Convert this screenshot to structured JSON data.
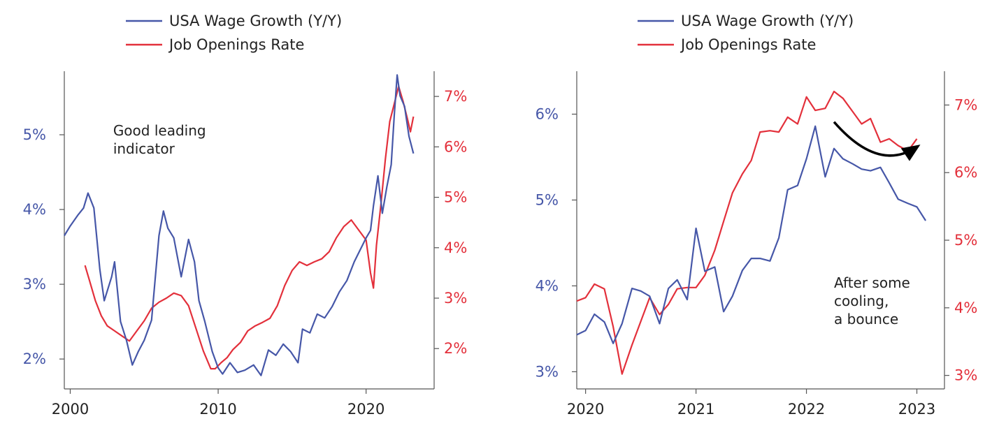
{
  "colors": {
    "wage": "#4657a8",
    "job": "#e3303b",
    "axis": "#555555",
    "arrow": "#000000"
  },
  "chart_data": [
    {
      "type": "line",
      "title": "",
      "legend_placement": "top",
      "grid": false,
      "xlim": [
        1999.6,
        2024.6
      ],
      "x_ticks": [
        2000,
        2010,
        2020
      ],
      "x_tick_labels": [
        "2000",
        "2010",
        "2020"
      ],
      "y_left": {
        "ylim": [
          1.6,
          5.85
        ],
        "ticks": [
          2,
          3,
          4,
          5
        ],
        "tick_labels": [
          "2%",
          "3%",
          "4%",
          "5%"
        ]
      },
      "y_right": {
        "ylim": [
          1.2,
          7.5
        ],
        "ticks": [
          2,
          3,
          4,
          5,
          6,
          7
        ],
        "tick_labels": [
          "2%",
          "3%",
          "4%",
          "5%",
          "6%",
          "7%"
        ]
      },
      "annotation": {
        "lines": [
          "Good leading",
          "indicator"
        ],
        "x": 2002.9,
        "y_left": 4.99
      },
      "series": [
        {
          "name": "USA Wage Growth (Y/Y)",
          "axis": "left",
          "x": [
            1999.6,
            2000.0,
            2000.5,
            2000.9,
            2001.2,
            2001.6,
            2002.0,
            2002.3,
            2002.8,
            2003.0,
            2003.4,
            2003.8,
            2004.2,
            2004.6,
            2005.0,
            2005.5,
            2006.0,
            2006.3,
            2006.6,
            2007.0,
            2007.5,
            2008.0,
            2008.4,
            2008.7,
            2009.1,
            2009.6,
            2010.0,
            2010.3,
            2010.8,
            2011.3,
            2011.8,
            2012.4,
            2012.9,
            2013.4,
            2013.9,
            2014.4,
            2014.9,
            2015.4,
            2015.7,
            2016.2,
            2016.7,
            2017.2,
            2017.7,
            2018.2,
            2018.7,
            2019.2,
            2019.7,
            2020.0,
            2020.3,
            2020.5,
            2020.8,
            2021.1,
            2021.4,
            2021.7,
            2021.9,
            2022.1,
            2022.3,
            2022.6,
            2022.9,
            2023.2
          ],
          "values": [
            3.65,
            3.78,
            3.92,
            4.02,
            4.22,
            4.02,
            3.2,
            2.78,
            3.1,
            3.3,
            2.5,
            2.25,
            1.92,
            2.1,
            2.25,
            2.52,
            3.65,
            3.98,
            3.75,
            3.62,
            3.1,
            3.6,
            3.3,
            2.78,
            2.5,
            2.1,
            1.88,
            1.8,
            1.95,
            1.82,
            1.85,
            1.92,
            1.78,
            2.12,
            2.05,
            2.2,
            2.1,
            1.95,
            2.4,
            2.35,
            2.6,
            2.55,
            2.7,
            2.9,
            3.05,
            3.3,
            3.5,
            3.62,
            3.72,
            4.05,
            4.45,
            3.95,
            4.3,
            4.6,
            5.25,
            5.8,
            5.52,
            5.38,
            4.98,
            4.75
          ]
        },
        {
          "name": "Job Openings Rate",
          "axis": "right",
          "x": [
            2001.0,
            2001.3,
            2001.7,
            2002.1,
            2002.5,
            2003.0,
            2003.5,
            2004.0,
            2004.5,
            2005.0,
            2005.5,
            2006.0,
            2006.5,
            2007.0,
            2007.5,
            2008.0,
            2008.5,
            2009.0,
            2009.5,
            2009.8,
            2010.2,
            2010.6,
            2011.0,
            2011.5,
            2012.0,
            2012.5,
            2013.0,
            2013.5,
            2014.0,
            2014.5,
            2015.0,
            2015.5,
            2016.0,
            2016.5,
            2017.0,
            2017.5,
            2018.0,
            2018.5,
            2019.0,
            2019.5,
            2020.0,
            2020.3,
            2020.5,
            2020.7,
            2021.0,
            2021.3,
            2021.6,
            2021.9,
            2022.2,
            2022.5,
            2022.8,
            2023.0,
            2023.2
          ],
          "values": [
            3.65,
            3.35,
            2.95,
            2.65,
            2.45,
            2.35,
            2.25,
            2.15,
            2.35,
            2.55,
            2.8,
            2.92,
            3.0,
            3.1,
            3.05,
            2.85,
            2.4,
            1.95,
            1.6,
            1.6,
            1.72,
            1.82,
            1.98,
            2.12,
            2.35,
            2.45,
            2.52,
            2.6,
            2.85,
            3.25,
            3.55,
            3.72,
            3.65,
            3.72,
            3.78,
            3.92,
            4.2,
            4.42,
            4.55,
            4.35,
            4.15,
            3.5,
            3.2,
            4.05,
            4.85,
            5.75,
            6.5,
            6.85,
            7.2,
            6.9,
            6.55,
            6.3,
            6.6
          ]
        }
      ]
    },
    {
      "type": "line",
      "title": "",
      "legend_placement": "top",
      "grid": false,
      "xlim": [
        2019.92,
        2023.25
      ],
      "x_ticks": [
        2020,
        2021,
        2022,
        2023
      ],
      "x_tick_labels": [
        "2020",
        "2021",
        "2022",
        "2023"
      ],
      "y_left": {
        "ylim": [
          2.8,
          6.5
        ],
        "ticks": [
          3,
          4,
          5,
          6
        ],
        "tick_labels": [
          "3%",
          "4%",
          "5%",
          "6%"
        ]
      },
      "y_right": {
        "ylim": [
          2.8,
          7.5
        ],
        "ticks": [
          3,
          4,
          5,
          6,
          7
        ],
        "tick_labels": [
          "3%",
          "4%",
          "5%",
          "6%",
          "7%"
        ]
      },
      "annotation": {
        "lines": [
          "After some",
          "cooling,",
          "a bounce"
        ],
        "x": 2022.25,
        "y_left": 3.98
      },
      "arrow": {
        "from": [
          2022.25,
          6.75
        ],
        "control": [
          2022.65,
          6.0
        ],
        "to": [
          2023.0,
          6.38
        ]
      },
      "series": [
        {
          "name": "USA Wage Growth (Y/Y)",
          "axis": "left",
          "x": [
            2019.92,
            2020.0,
            2020.08,
            2020.17,
            2020.25,
            2020.33,
            2020.42,
            2020.5,
            2020.58,
            2020.67,
            2020.75,
            2020.83,
            2020.92,
            2021.0,
            2021.08,
            2021.17,
            2021.25,
            2021.33,
            2021.42,
            2021.5,
            2021.58,
            2021.67,
            2021.75,
            2021.83,
            2021.92,
            2022.0,
            2022.08,
            2022.17,
            2022.25,
            2022.33,
            2022.42,
            2022.5,
            2022.58,
            2022.67,
            2022.75,
            2022.83,
            2022.92,
            2023.0,
            2023.08
          ],
          "values": [
            3.43,
            3.48,
            3.67,
            3.58,
            3.33,
            3.56,
            3.97,
            3.94,
            3.88,
            3.56,
            3.97,
            4.07,
            3.84,
            4.67,
            4.17,
            4.22,
            3.7,
            3.88,
            4.18,
            4.32,
            4.32,
            4.29,
            4.56,
            5.12,
            5.17,
            5.48,
            5.86,
            5.27,
            5.6,
            5.48,
            5.42,
            5.36,
            5.34,
            5.38,
            5.2,
            5.01,
            4.96,
            4.92,
            4.76
          ]
        },
        {
          "name": "Job Openings Rate",
          "axis": "right",
          "x": [
            2019.92,
            2020.0,
            2020.08,
            2020.17,
            2020.25,
            2020.33,
            2020.42,
            2020.5,
            2020.58,
            2020.67,
            2020.75,
            2020.83,
            2020.92,
            2021.0,
            2021.08,
            2021.17,
            2021.25,
            2021.33,
            2021.42,
            2021.5,
            2021.58,
            2021.67,
            2021.75,
            2021.83,
            2021.92,
            2022.0,
            2022.08,
            2022.17,
            2022.25,
            2022.33,
            2022.42,
            2022.5,
            2022.58,
            2022.67,
            2022.75,
            2022.83,
            2022.92,
            2023.0
          ],
          "values": [
            4.1,
            4.15,
            4.35,
            4.28,
            3.72,
            3.02,
            3.45,
            3.8,
            4.15,
            3.9,
            4.05,
            4.28,
            4.3,
            4.3,
            4.48,
            4.85,
            5.28,
            5.7,
            5.98,
            6.18,
            6.6,
            6.62,
            6.6,
            6.82,
            6.72,
            7.12,
            6.92,
            6.95,
            7.2,
            7.1,
            6.9,
            6.72,
            6.8,
            6.45,
            6.5,
            6.4,
            6.32,
            6.5
          ]
        }
      ]
    }
  ]
}
